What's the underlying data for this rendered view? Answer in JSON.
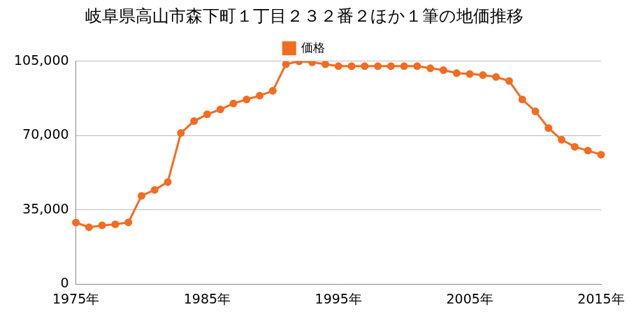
{
  "chart_data": {
    "type": "line",
    "title": "岐阜県高山市森下町１丁目２３２番２ほか１筆の地価推移",
    "legend": "top",
    "grid": true,
    "marker": "circle",
    "categories": [
      "1975年",
      null,
      null,
      null,
      null,
      null,
      null,
      null,
      null,
      null,
      "1985年",
      null,
      null,
      null,
      null,
      null,
      null,
      null,
      null,
      null,
      "1995年",
      null,
      null,
      null,
      null,
      null,
      null,
      null,
      null,
      null,
      "2005年",
      null,
      null,
      null,
      null,
      null,
      null,
      null,
      null,
      null,
      "2015年"
    ],
    "series": [
      {
        "name": "価格",
        "color": "#f36c21",
        "values": [
          29000,
          26800,
          27700,
          28200,
          29100,
          41600,
          44400,
          48100,
          71200,
          76800,
          80000,
          82300,
          85100,
          87000,
          88800,
          91100,
          103600,
          105000,
          104500,
          103600,
          102700,
          102700,
          102700,
          102700,
          102700,
          102700,
          102700,
          101700,
          100800,
          99400,
          99000,
          98500,
          97600,
          95700,
          87000,
          81400,
          73500,
          68000,
          64700,
          62900,
          61000
        ]
      }
    ],
    "ylim": [
      0,
      105000
    ],
    "yticks": [
      0,
      {
        "value": 35000,
        "label": "35,000"
      },
      {
        "value": 70000,
        "label": "70,000"
      },
      {
        "value": 105000,
        "label": "105,000"
      }
    ]
  }
}
